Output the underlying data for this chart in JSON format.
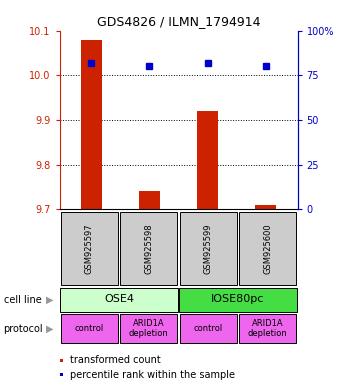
{
  "title": "GDS4826 / ILMN_1794914",
  "samples": [
    "GSM925597",
    "GSM925598",
    "GSM925599",
    "GSM925600"
  ],
  "bar_values": [
    10.08,
    9.74,
    9.92,
    9.71
  ],
  "percentile_values": [
    82,
    80,
    82,
    80
  ],
  "ylim_left": [
    9.7,
    10.1
  ],
  "ylim_right": [
    0,
    100
  ],
  "yticks_left": [
    9.7,
    9.8,
    9.9,
    10.0,
    10.1
  ],
  "yticks_right": [
    0,
    25,
    50,
    75,
    100
  ],
  "ytick_labels_right": [
    "0",
    "25",
    "50",
    "75",
    "100%"
  ],
  "bar_color": "#cc2200",
  "dot_color": "#0000cc",
  "bar_bottom": 9.7,
  "cell_line_labels": [
    "OSE4",
    "IOSE80pc"
  ],
  "cell_line_spans": [
    [
      0,
      2
    ],
    [
      2,
      4
    ]
  ],
  "cell_line_colors": [
    "#ccffcc",
    "#44dd44"
  ],
  "protocol_labels": [
    "control",
    "ARID1A\ndepletion",
    "control",
    "ARID1A\ndepletion"
  ],
  "protocol_color": "#ee66ee",
  "sample_box_color": "#cccccc",
  "legend_bar_label": "transformed count",
  "legend_dot_label": "percentile rank within the sample",
  "row_label_cell_line": "cell line",
  "row_label_protocol": "protocol",
  "arrow_color": "#999999",
  "fig_width": 3.5,
  "fig_height": 3.84,
  "dpi": 100
}
